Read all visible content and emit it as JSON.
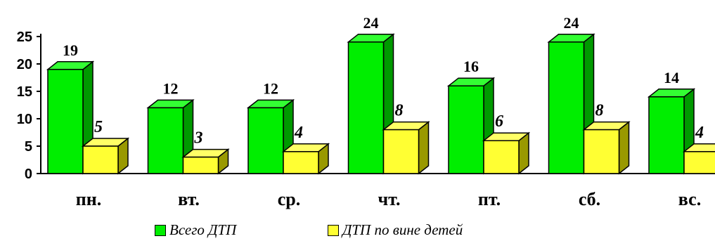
{
  "chart_data": {
    "type": "bar",
    "categories": [
      "пн.",
      "вт.",
      "ср.",
      "чт.",
      "пт.",
      "сб.",
      "вс."
    ],
    "series": [
      {
        "name": "Всего ДТП",
        "values": [
          19,
          12,
          12,
          24,
          16,
          24,
          14
        ],
        "color": "#00ee00",
        "side_color": "#009900",
        "top_color": "#33ff33"
      },
      {
        "name": "ДТП по вине детей",
        "values": [
          5,
          3,
          4,
          8,
          6,
          8,
          4
        ],
        "color": "#ffff33",
        "side_color": "#999900",
        "top_color": "#ffff66"
      }
    ],
    "yticks": [
      0,
      5,
      10,
      15,
      20,
      25
    ],
    "ylim": [
      0,
      25
    ],
    "legend_position": "bottom"
  }
}
